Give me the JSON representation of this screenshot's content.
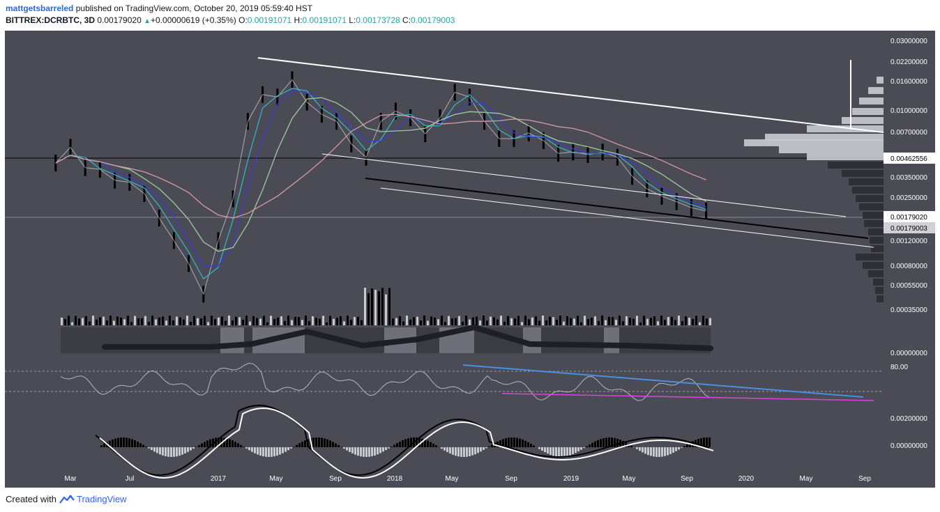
{
  "header": {
    "author": "mattgetsbarreled",
    "publish_text": "published on TradingView.com, October 20, 2019 05:59:40 HST",
    "symbol": "BITTREX:DCRBTC, 3D",
    "last_price": "0.00179020",
    "change": "+0.00000619 (+0.35%)",
    "o_label": "O:",
    "o_value": "0.00191071",
    "h_label": "H:",
    "h_value": "0.00191071",
    "l_label": "L:",
    "l_value": "0.00173728",
    "c_label": "C:",
    "c_value": "0.00179003"
  },
  "footer": {
    "created_with": "Created with",
    "brand": "TradingView"
  },
  "colors": {
    "panel_bg": "#4a4b55",
    "candle": "#000000",
    "ma_teal": "#33b3c6",
    "ma_blue": "#3b3bd6",
    "ma_green": "#9fce9f",
    "ma_pink": "#d59aa8",
    "trendline": "#ffffff",
    "rsi_trend": "#4a90e2",
    "rsi_support": "#e040e0"
  },
  "chart_data": {
    "type": "line",
    "price_axis": {
      "scale": "log",
      "ticks": [
        "0.03000000",
        "0.02200000",
        "0.01600000",
        "0.01000000",
        "0.00700000",
        "0.00462556",
        "0.00350000",
        "0.00250000",
        "0.00179020",
        "0.00179003",
        "0.00120000",
        "0.00080000",
        "0.00055000",
        "0.00035000",
        "0.00000000"
      ],
      "highlight_labels": [
        "0.00462556",
        "0.00179020",
        "0.00179003"
      ]
    },
    "time_axis": {
      "ticks": [
        "Mar",
        "Jul",
        "2017",
        "May",
        "Sep",
        "2018",
        "May",
        "Sep",
        "2019",
        "May",
        "Sep",
        "2020",
        "May",
        "Sep"
      ]
    },
    "price_series": {
      "name": "DCRBTC",
      "points": [
        [
          "2016-02",
          0.004
        ],
        [
          "2016-03",
          0.0052
        ],
        [
          "2016-04",
          0.0037
        ],
        [
          "2016-05",
          0.0036
        ],
        [
          "2016-06",
          0.003
        ],
        [
          "2016-07",
          0.0029
        ],
        [
          "2016-08",
          0.0024
        ],
        [
          "2016-09",
          0.0016
        ],
        [
          "2016-10",
          0.0011
        ],
        [
          "2016-11",
          0.00075
        ],
        [
          "2016-12",
          0.00045
        ],
        [
          "2017-01",
          0.0011
        ],
        [
          "2017-02",
          0.0022
        ],
        [
          "2017-03",
          0.008
        ],
        [
          "2017-04",
          0.0125
        ],
        [
          "2017-05",
          0.012
        ],
        [
          "2017-06",
          0.016
        ],
        [
          "2017-07",
          0.011
        ],
        [
          "2017-08",
          0.009
        ],
        [
          "2017-09",
          0.008
        ],
        [
          "2017-10",
          0.0055
        ],
        [
          "2017-11",
          0.0044
        ],
        [
          "2017-12",
          0.008
        ],
        [
          "2018-01",
          0.0095
        ],
        [
          "2018-02",
          0.0085
        ],
        [
          "2018-03",
          0.0065
        ],
        [
          "2018-04",
          0.0085
        ],
        [
          "2018-05",
          0.013
        ],
        [
          "2018-06",
          0.012
        ],
        [
          "2018-07",
          0.008
        ],
        [
          "2018-08",
          0.006
        ],
        [
          "2018-09",
          0.006
        ],
        [
          "2018-10",
          0.0066
        ],
        [
          "2018-11",
          0.0058
        ],
        [
          "2018-12",
          0.0047
        ],
        [
          "2019-01",
          0.0048
        ],
        [
          "2019-02",
          0.0046
        ],
        [
          "2019-03",
          0.0048
        ],
        [
          "2019-04",
          0.0044
        ],
        [
          "2019-05",
          0.0032
        ],
        [
          "2019-06",
          0.0026
        ],
        [
          "2019-07",
          0.0023
        ],
        [
          "2019-08",
          0.0021
        ],
        [
          "2019-09",
          0.0019
        ],
        [
          "2019-10",
          0.0018
        ]
      ]
    },
    "horizontal_lines": [
      0.00462556,
      0.0017902
    ],
    "rsi": {
      "level_label": "80.00"
    },
    "macd": {
      "ticks": [
        "0.00200000",
        "0.00000000"
      ]
    }
  }
}
